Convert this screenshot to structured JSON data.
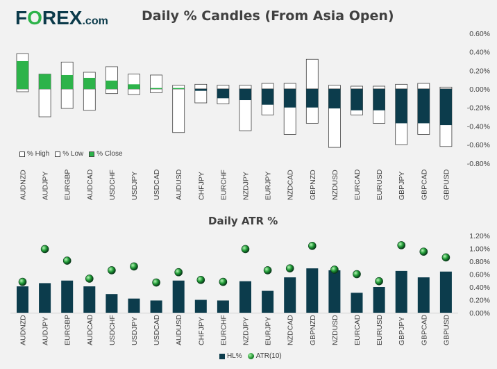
{
  "logo": {
    "text": "F",
    "o": "O",
    "rest": "REX",
    "suffix": ".com"
  },
  "colors": {
    "navy": "#0c3c4c",
    "green": "#2db34a",
    "white": "#ffffff",
    "outline": "#404040"
  },
  "chart_data": [
    {
      "type": "candlestick",
      "title": "Daily % Candles (From Asia Open)",
      "categories": [
        "AUDNZD",
        "AUDJPY",
        "EURGBP",
        "AUDCAD",
        "USDCHF",
        "USDJPY",
        "USDCAD",
        "AUDUSD",
        "CHFJPY",
        "EURCHF",
        "NZDJPY",
        "EURJPY",
        "NZDCAD",
        "GBPNZD",
        "NZDUSD",
        "EURCAD",
        "EURUSD",
        "GBPJPY",
        "GBPCAD",
        "GBPUSD"
      ],
      "series": [
        {
          "name": "% High",
          "values": [
            0.38,
            0.16,
            0.29,
            0.18,
            0.24,
            0.16,
            0.15,
            0.04,
            0.05,
            0.04,
            0.04,
            0.06,
            0.06,
            0.32,
            0.04,
            0.03,
            0.03,
            0.05,
            0.06,
            0.02
          ]
        },
        {
          "name": "% Low",
          "values": [
            -0.03,
            -0.3,
            -0.21,
            -0.23,
            -0.05,
            -0.06,
            -0.04,
            -0.47,
            -0.15,
            -0.16,
            -0.45,
            -0.28,
            -0.49,
            -0.37,
            -0.63,
            -0.28,
            -0.37,
            -0.6,
            -0.49,
            -0.62
          ]
        },
        {
          "name": "% Close",
          "values": [
            0.3,
            0.16,
            0.15,
            0.12,
            0.09,
            0.05,
            0.01,
            0.01,
            -0.02,
            -0.1,
            -0.12,
            -0.17,
            -0.2,
            -0.2,
            -0.21,
            -0.23,
            -0.23,
            -0.37,
            -0.37,
            -0.39
          ]
        }
      ],
      "yticks": [
        "0.60%",
        "0.40%",
        "0.20%",
        "0.00%",
        "-0.20%",
        "-0.40%",
        "-0.60%",
        "-0.80%"
      ],
      "ylim": [
        -0.8,
        0.6
      ],
      "legend": {
        "high": "% High",
        "low": "% Low",
        "close": "% Close"
      }
    },
    {
      "type": "bar",
      "title": "Daily ATR %",
      "categories": [
        "AUDNZD",
        "AUDJPY",
        "EURGBP",
        "AUDCAD",
        "USDCHF",
        "USDJPY",
        "USDCAD",
        "AUDUSD",
        "CHFJPY",
        "EURCHF",
        "NZDJPY",
        "EURJPY",
        "NZDCAD",
        "GBPNZD",
        "NZDUSD",
        "EURCAD",
        "EURUSD",
        "GBPJPY",
        "GBPCAD",
        "GBPUSD"
      ],
      "series": [
        {
          "name": "HL%",
          "values": [
            0.41,
            0.46,
            0.5,
            0.41,
            0.29,
            0.22,
            0.19,
            0.5,
            0.2,
            0.19,
            0.49,
            0.34,
            0.55,
            0.69,
            0.66,
            0.31,
            0.4,
            0.65,
            0.55,
            0.64
          ]
        },
        {
          "name": "ATR(10)",
          "values": [
            0.48,
            0.99,
            0.81,
            0.53,
            0.66,
            0.72,
            0.47,
            0.63,
            0.51,
            0.48,
            0.99,
            0.66,
            0.69,
            1.04,
            0.67,
            0.6,
            0.49,
            1.05,
            0.95,
            0.86
          ]
        }
      ],
      "yticks": [
        "1.20%",
        "1.00%",
        "0.80%",
        "0.60%",
        "0.40%",
        "0.20%",
        "0.00%"
      ],
      "ylim": [
        0,
        1.2
      ],
      "legend": {
        "hl": "HL%",
        "atr": "ATR(10)"
      }
    }
  ]
}
